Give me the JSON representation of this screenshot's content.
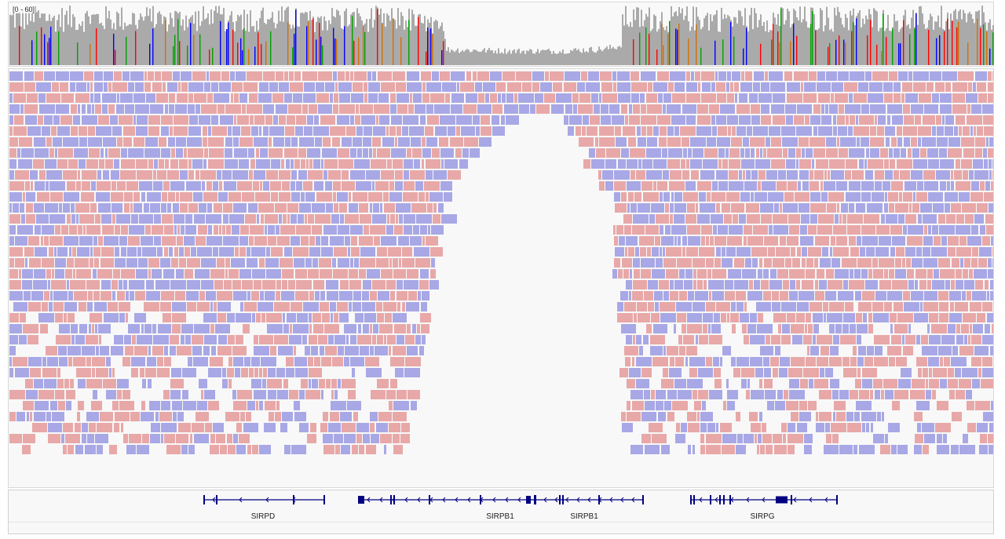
{
  "app": "IGV genome browser",
  "coverage": {
    "range_label": "[0 - 60]",
    "colors": {
      "coverage": "#aaaaaa",
      "A": "#00a000",
      "C": "#0000ff",
      "G": "#d17105",
      "T": "#ff0000"
    }
  },
  "alignment": {
    "colors": {
      "forward": "#e8a8a8",
      "reverse": "#a8a8e6",
      "background": "#f8f8f8"
    }
  },
  "genes": [
    {
      "name": "SIRPD",
      "label_x": 334
    },
    {
      "name": "SIRPB1",
      "label_x": 636
    },
    {
      "name": "SIRPB1",
      "label_x": 743
    },
    {
      "name": "SIRPG",
      "label_x": 970
    }
  ],
  "gene_color": "#000080"
}
